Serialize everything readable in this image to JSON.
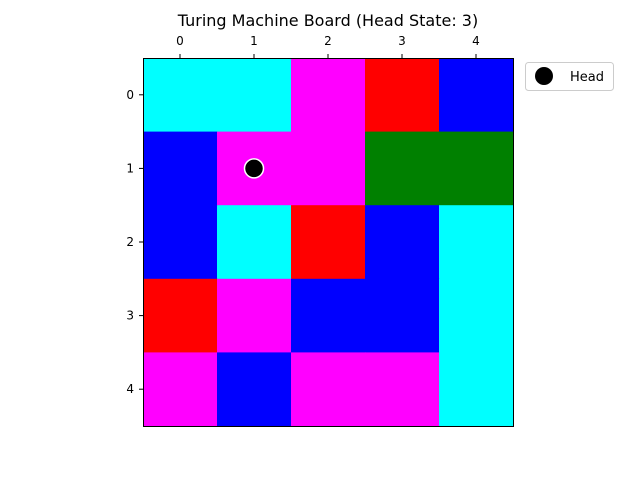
{
  "chart_data": {
    "type": "heatmap",
    "title": "Turing Machine Board (Head State: 3)",
    "x_ticks": [
      "0",
      "1",
      "2",
      "3",
      "4"
    ],
    "y_ticks": [
      "0",
      "1",
      "2",
      "3",
      "4"
    ],
    "x_axis_position": "top",
    "grid": false,
    "colors": {
      "cyan": "#00ffff",
      "magenta": "#ff00ff",
      "red": "#ff0000",
      "blue": "#0000ff",
      "green": "#008000"
    },
    "grid_colors": [
      [
        "cyan",
        "cyan",
        "magenta",
        "red",
        "blue"
      ],
      [
        "blue",
        "magenta",
        "magenta",
        "green",
        "green"
      ],
      [
        "blue",
        "cyan",
        "red",
        "blue",
        "cyan"
      ],
      [
        "red",
        "magenta",
        "blue",
        "blue",
        "cyan"
      ],
      [
        "magenta",
        "blue",
        "magenta",
        "magenta",
        "cyan"
      ]
    ],
    "head": {
      "row": 1,
      "col": 1,
      "marker_color": "#000000",
      "edge_color": "#ffffff"
    },
    "legend": {
      "placement": "outside-top-right",
      "entries": [
        "Head"
      ]
    }
  }
}
